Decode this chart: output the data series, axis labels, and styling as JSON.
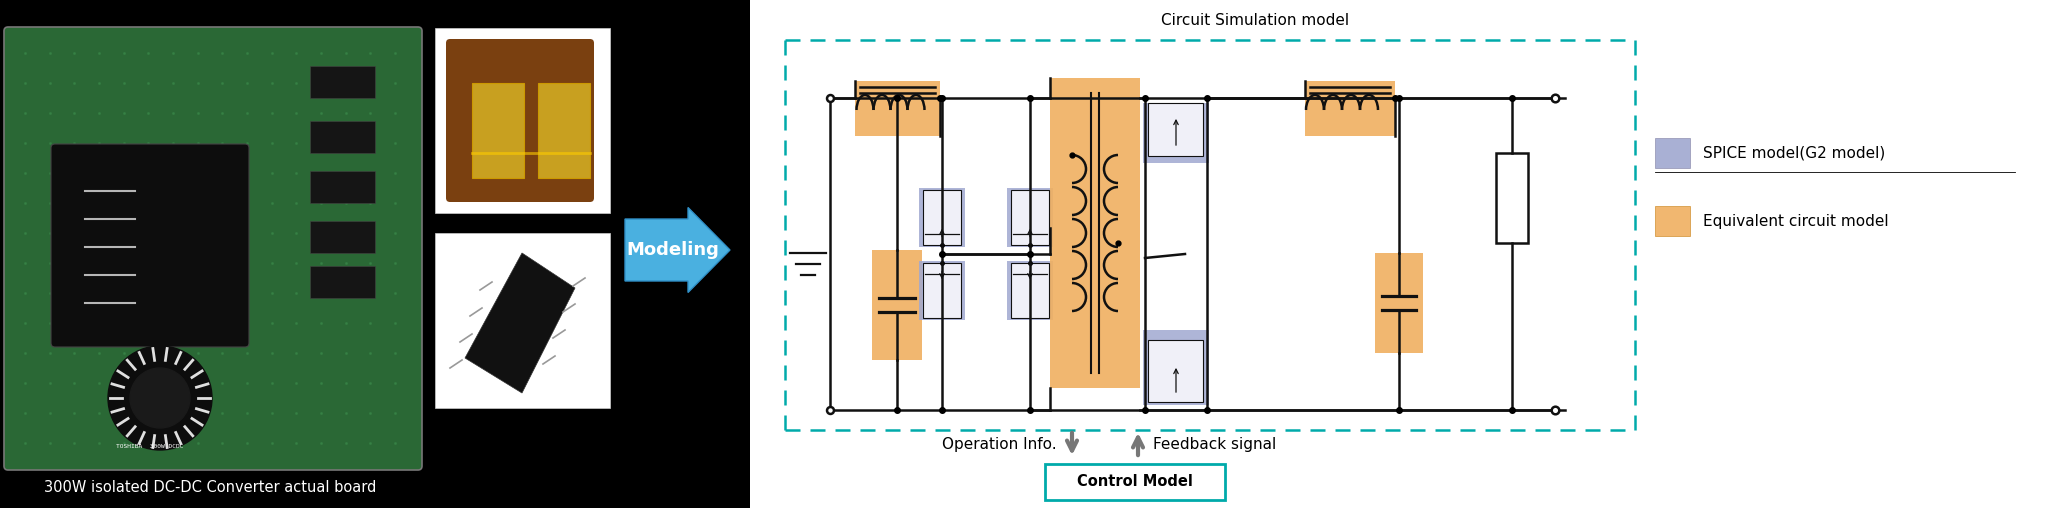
{
  "fig_width": 20.47,
  "fig_height": 5.08,
  "bg_color": "#000000",
  "right_bg": "#ffffff",
  "caption": "300W isolated DC-DC Converter actual board",
  "caption_color": "#ffffff",
  "caption_fontsize": 10.5,
  "board_color": "#2a6835",
  "arrow_color": "#4ab0e0",
  "arrow_label": "Modeling",
  "arrow_label_color": "#ffffff",
  "arrow_label_fontsize": 13,
  "circuit_box_color": "#00aaaa",
  "circuit_title": "Circuit Simulation model",
  "circuit_title_fontsize": 11,
  "spice_color": "#a0a8d0",
  "equiv_color": "#f0b060",
  "spice_label": "SPICE model(G2 model)",
  "equiv_label": "Equivalent circuit model",
  "legend_fontsize": 11,
  "operation_label": "Operation Info.",
  "feedback_label": "Feedback signal",
  "control_label": "Control Model",
  "control_box_color": "#00aaaa",
  "label_fontsize": 11,
  "line_color": "#111111",
  "lw": 1.8
}
